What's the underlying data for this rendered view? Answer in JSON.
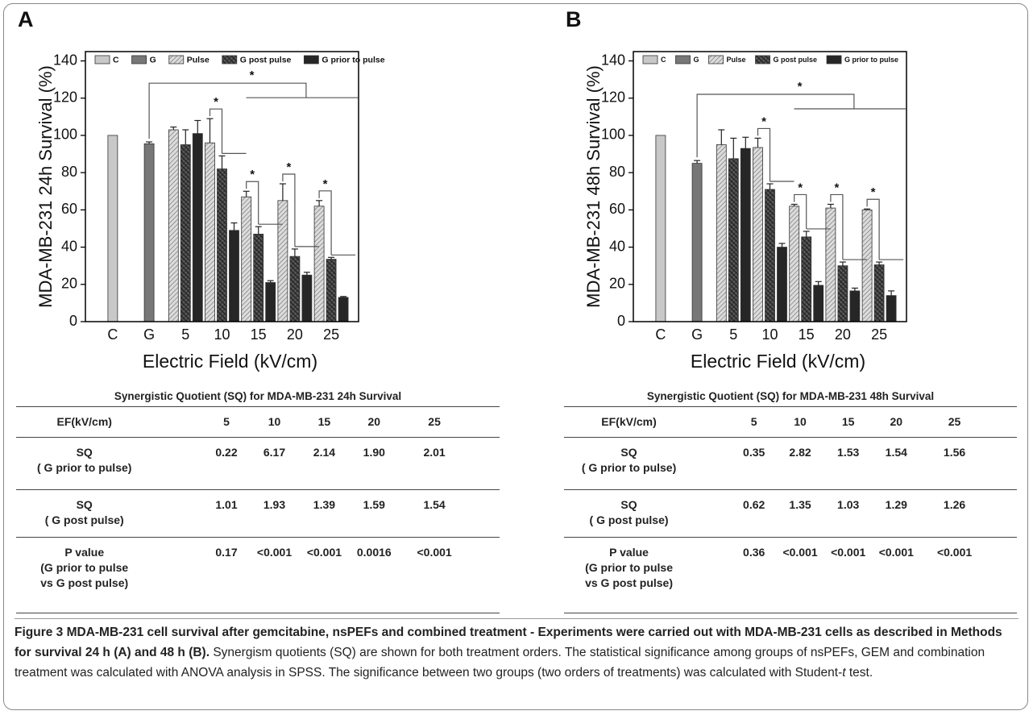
{
  "chart_data": [
    {
      "type": "bar",
      "panel": "A",
      "y_label": "MDA-MB-231 24h Survival (%)",
      "x_label": "Electric Field (kV/cm)",
      "categories": [
        "C",
        "G",
        "5",
        "10",
        "15",
        "20",
        "25"
      ],
      "series": [
        {
          "name": "C",
          "color": "#c8c8c8",
          "pattern": "solid",
          "values": [
            100,
            null,
            null,
            null,
            null,
            null,
            null
          ],
          "errors": [
            null,
            null,
            null,
            null,
            null,
            null,
            null
          ]
        },
        {
          "name": "G",
          "color": "#777777",
          "pattern": "solid",
          "values": [
            null,
            95.5,
            null,
            null,
            null,
            null,
            null
          ],
          "errors": [
            null,
            1,
            null,
            null,
            null,
            null,
            null
          ]
        },
        {
          "name": "Pulse",
          "color": "#dcdcdc",
          "pattern": "diagonal",
          "values": [
            null,
            null,
            103,
            96,
            67,
            65,
            62
          ],
          "errors": [
            null,
            null,
            1.5,
            13,
            3,
            9,
            3
          ]
        },
        {
          "name": "G post pulse",
          "color": "#5a5a5a",
          "pattern": "crosshatch",
          "values": [
            null,
            null,
            95,
            82,
            47,
            35,
            33.5
          ],
          "errors": [
            null,
            null,
            8,
            7,
            4,
            4,
            1
          ]
        },
        {
          "name": "G prior to pulse",
          "color": "#262626",
          "pattern": "solid",
          "values": [
            null,
            null,
            101,
            49,
            21,
            25,
            13
          ],
          "errors": [
            null,
            null,
            7,
            4,
            1,
            1.5,
            0.5
          ]
        }
      ],
      "ylim": [
        0,
        145
      ],
      "yticks": [
        0,
        20,
        40,
        60,
        80,
        100,
        120,
        140
      ],
      "legend": "top-left",
      "significance": [
        "*",
        "*",
        "*",
        "*",
        "*"
      ]
    },
    {
      "type": "bar",
      "panel": "B",
      "y_label": "MDA-MB-231 48h Survival (%)",
      "x_label": "Electric Field (kV/cm)",
      "categories": [
        "C",
        "G",
        "5",
        "10",
        "15",
        "20",
        "25"
      ],
      "series": [
        {
          "name": "C",
          "color": "#c8c8c8",
          "pattern": "solid",
          "values": [
            100,
            null,
            null,
            null,
            null,
            null,
            null
          ],
          "errors": [
            null,
            null,
            null,
            null,
            null,
            null,
            null
          ]
        },
        {
          "name": "G",
          "color": "#777777",
          "pattern": "solid",
          "values": [
            null,
            85,
            null,
            null,
            null,
            null,
            null
          ],
          "errors": [
            null,
            1.5,
            null,
            null,
            null,
            null,
            null
          ]
        },
        {
          "name": "Pulse",
          "color": "#dcdcdc",
          "pattern": "diagonal",
          "values": [
            null,
            null,
            95,
            93.5,
            62,
            61,
            60
          ],
          "errors": [
            null,
            null,
            8,
            5,
            1,
            2,
            0.5
          ]
        },
        {
          "name": "G post pulse",
          "color": "#5a5a5a",
          "pattern": "crosshatch",
          "values": [
            null,
            null,
            87.5,
            71,
            45.5,
            30,
            30.5
          ],
          "errors": [
            null,
            null,
            11,
            3,
            3,
            2,
            1.5
          ]
        },
        {
          "name": "G prior to pulse",
          "color": "#262626",
          "pattern": "solid",
          "values": [
            null,
            null,
            93,
            40,
            19.5,
            16.5,
            14
          ],
          "errors": [
            null,
            null,
            6,
            2,
            2,
            1.5,
            2.5
          ]
        }
      ],
      "ylim": [
        0,
        145
      ],
      "yticks": [
        0,
        20,
        40,
        60,
        80,
        100,
        120,
        140
      ],
      "legend": "top-left",
      "significance": [
        "*",
        "*",
        "*",
        "*",
        "*"
      ]
    }
  ],
  "tables": [
    {
      "title": "Synergistic  Quotient (SQ) for MDA-MB-231  24h Survival",
      "rows": [
        [
          "EF(kV/cm)",
          "5",
          "10",
          "15",
          "20",
          "25"
        ],
        [
          "SQ\n( G prior to pulse)",
          "0.22",
          "6.17",
          "2.14",
          "1.90",
          "2.01"
        ],
        [
          "SQ\n( G post pulse)",
          "1.01",
          "1.93",
          "1.39",
          "1.59",
          "1.54"
        ],
        [
          "P value\n(G prior to pulse\nvs G post pulse)",
          "0.17",
          "<0.001",
          "<0.001",
          "0.0016",
          "<0.001"
        ]
      ]
    },
    {
      "title": "Synergistic  Quotient (SQ) for MDA-MB-231  48h Survival",
      "rows": [
        [
          "EF(kV/cm)",
          "5",
          "10",
          "15",
          "20",
          "25"
        ],
        [
          "SQ\n( G prior to pulse)",
          "0.35",
          "2.82",
          "1.53",
          "1.54",
          "1.56"
        ],
        [
          "SQ\n( G post pulse)",
          "0.62",
          "1.35",
          "1.03",
          "1.29",
          "1.26"
        ],
        [
          "P value\n(G prior to pulse\nvs G post pulse)",
          "0.36",
          "<0.001",
          "<0.001",
          "<0.001",
          "<0.001"
        ]
      ]
    }
  ],
  "caption": {
    "bold": "Figure 3 MDA-MB-231 cell survival after gemcitabine, nsPEFs and combined treatment - Experiments were carried out with MDA-MB-231 cells as described in Methods for survival 24 h (A) and 48 h (B).",
    "text": "Synergism quotients (SQ) are shown for both treatment orders. The statistical significance among groups of nsPEFs, GEM and combination treatment was calculated with ANOVA analysis in SPSS. The significance between two groups (two orders of treatments) was calculated with Student-",
    "italic": "t",
    "end": " test."
  }
}
